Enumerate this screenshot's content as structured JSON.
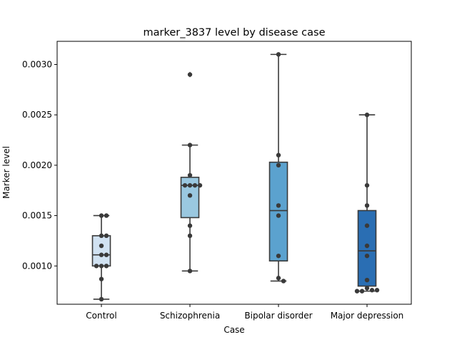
{
  "chart_data": {
    "type": "box",
    "title": "marker_3837 level by disease case",
    "xlabel": "Case",
    "ylabel": "Marker level",
    "categories": [
      "Control",
      "Schizophrenia",
      "Bipolar disorder",
      "Major depression"
    ],
    "ylim": [
      0.00062,
      0.00323
    ],
    "yticks": [
      0.001,
      0.0015,
      0.002,
      0.0025,
      0.003
    ],
    "ytick_labels": [
      "0.0010",
      "0.0015",
      "0.0020",
      "0.0025",
      "0.0030"
    ],
    "grid": false,
    "box_colors": [
      "#d1e2f2",
      "#9ac8e0",
      "#5ba2cf",
      "#2a6eb3"
    ],
    "boxes": [
      {
        "category": "Control",
        "q1": 0.001,
        "median": 0.00111,
        "q3": 0.0013,
        "whisker_low": 0.00067,
        "whisker_high": 0.0015,
        "outliers": []
      },
      {
        "category": "Schizophrenia",
        "q1": 0.00148,
        "median": 0.0018,
        "q3": 0.00188,
        "whisker_low": 0.00095,
        "whisker_high": 0.0022,
        "outliers": [
          0.0029
        ]
      },
      {
        "category": "Bipolar disorder",
        "q1": 0.00105,
        "median": 0.00155,
        "q3": 0.00203,
        "whisker_low": 0.00085,
        "whisker_high": 0.0031,
        "outliers": []
      },
      {
        "category": "Major depression",
        "q1": 0.0008,
        "median": 0.00115,
        "q3": 0.00155,
        "whisker_low": 0.00075,
        "whisker_high": 0.0025,
        "outliers": []
      }
    ],
    "points": [
      [
        0.0015,
        0.0015,
        0.0013,
        0.0013,
        0.0012,
        0.00111,
        0.00111,
        0.001,
        0.001,
        0.001,
        0.00087,
        0.00067
      ],
      [
        0.0029,
        0.0022,
        0.0019,
        0.0018,
        0.0018,
        0.0018,
        0.0018,
        0.0017,
        0.0014,
        0.0013,
        0.00095
      ],
      [
        0.0031,
        0.0021,
        0.002,
        0.0016,
        0.0015,
        0.0011,
        0.00088,
        0.00085
      ],
      [
        0.0025,
        0.0018,
        0.0016,
        0.0014,
        0.0012,
        0.0011,
        0.00086,
        0.00078,
        0.00076,
        0.00075,
        0.00076,
        0.00075
      ]
    ]
  }
}
